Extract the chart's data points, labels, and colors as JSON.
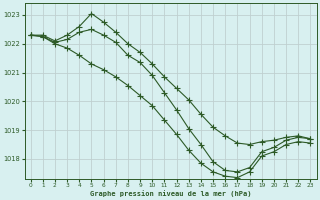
{
  "title": "Graphe pression niveau de la mer (hPa)",
  "bg_color": "#d8f0f0",
  "grid_color": "#c0d0d0",
  "line_color": "#2d5a27",
  "xlim": [
    -0.5,
    23.5
  ],
  "ylim": [
    1017.3,
    1023.4
  ],
  "yticks": [
    1018,
    1019,
    1020,
    1021,
    1022,
    1023
  ],
  "xticks": [
    0,
    1,
    2,
    3,
    4,
    5,
    6,
    7,
    8,
    9,
    10,
    11,
    12,
    13,
    14,
    15,
    16,
    17,
    18,
    19,
    20,
    21,
    22,
    23
  ],
  "line1": {
    "x": [
      0,
      1,
      2,
      3,
      4,
      5,
      6,
      7,
      8,
      9,
      10,
      11,
      12,
      13,
      14,
      15,
      16,
      17,
      18,
      19,
      20,
      21,
      22,
      23
    ],
    "y": [
      1022.3,
      1022.3,
      1022.1,
      1022.3,
      1022.6,
      1023.05,
      1022.75,
      1022.4,
      1022.0,
      1021.7,
      1021.3,
      1020.85,
      1020.45,
      1020.05,
      1019.55,
      1019.1,
      1018.8,
      1018.55,
      1018.5,
      1018.6,
      1018.65,
      1018.75,
      1018.8,
      1018.7
    ]
  },
  "line2": {
    "x": [
      0,
      1,
      2,
      3,
      4,
      5,
      6,
      7,
      8,
      9,
      10,
      11,
      12,
      13,
      14,
      15,
      16,
      17,
      18,
      19,
      20,
      21,
      22,
      23
    ],
    "y": [
      1022.3,
      1022.25,
      1022.05,
      1022.15,
      1022.4,
      1022.5,
      1022.3,
      1022.05,
      1021.6,
      1021.35,
      1020.9,
      1020.3,
      1019.7,
      1019.05,
      1018.5,
      1017.9,
      1017.6,
      1017.55,
      1017.7,
      1018.25,
      1018.4,
      1018.65,
      1018.75,
      1018.7
    ]
  },
  "line3": {
    "x": [
      0,
      1,
      2,
      3,
      4,
      5,
      6,
      7,
      8,
      9,
      10,
      11,
      12,
      13,
      14,
      15,
      16,
      17,
      18,
      19,
      20,
      21,
      22,
      23
    ],
    "y": [
      1022.3,
      1022.25,
      1022.0,
      1021.85,
      1021.6,
      1021.3,
      1021.1,
      1020.85,
      1020.55,
      1020.2,
      1019.85,
      1019.35,
      1018.85,
      1018.3,
      1017.85,
      1017.55,
      1017.4,
      1017.35,
      1017.55,
      1018.1,
      1018.25,
      1018.5,
      1018.6,
      1018.55
    ]
  }
}
